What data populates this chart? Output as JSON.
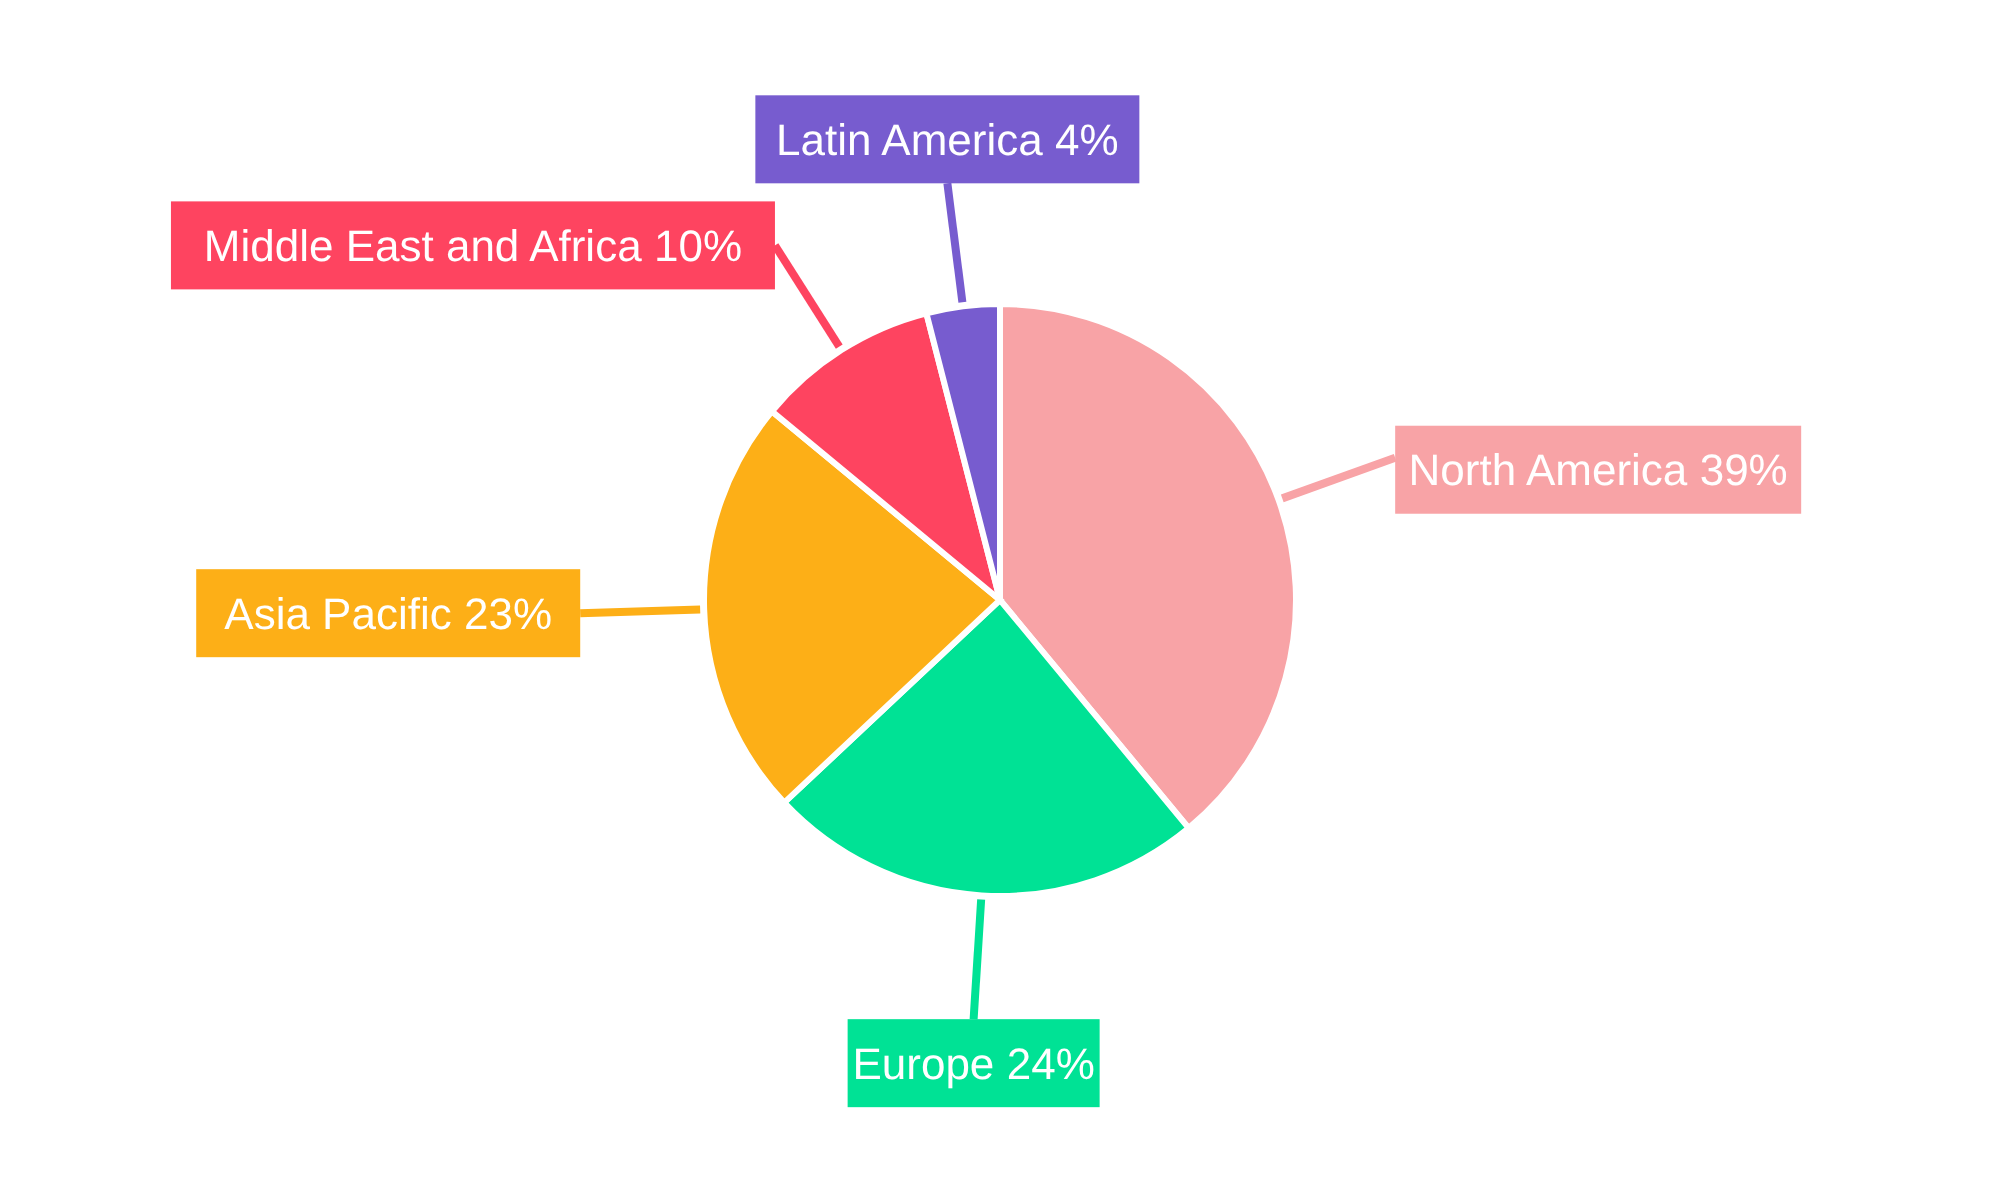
{
  "chart_data": {
    "type": "pie",
    "categories": [
      "North America",
      "Europe",
      "Asia Pacific",
      "Middle East and Africa",
      "Latin America"
    ],
    "values": [
      39,
      24,
      23,
      10,
      4
    ],
    "colors": [
      "#f8a3a6",
      "#00e295",
      "#fdaf17",
      "#fe4460",
      "#775ccf"
    ],
    "value_labels": [
      "39%",
      "24%",
      "23%",
      "10%",
      "4%"
    ]
  }
}
